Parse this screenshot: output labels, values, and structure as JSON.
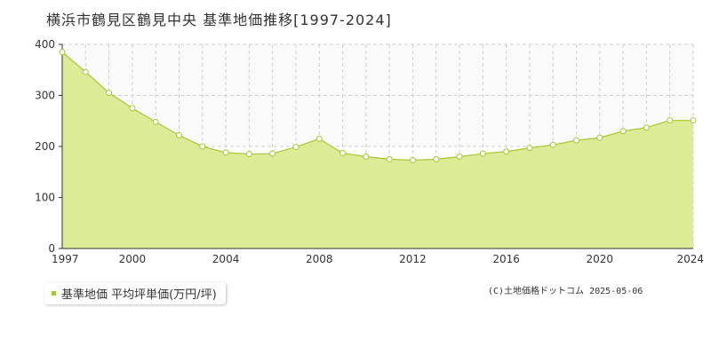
{
  "title": "横浜市鶴見区鶴見中央  基準地価推移[1997-2024]",
  "legend_label": "基準地価 平均坪単価(万円/坪)",
  "credit": "(C)土地価格ドットコム 2025-05-06",
  "colors": {
    "area_fill": "#dcec96",
    "line": "#a6c832",
    "marker_fill": "#ffffff",
    "grid": "#d0d0d0",
    "upper_band": "#fafafa",
    "axis": "#333333"
  },
  "chart_data": {
    "type": "area",
    "title": "横浜市鶴見区鶴見中央  基準地価推移[1997-2024]",
    "xlabel": "",
    "ylabel": "",
    "ylim": [
      0,
      400
    ],
    "yticks": [
      0,
      100,
      200,
      300,
      400
    ],
    "xticks": [
      1997,
      2000,
      2004,
      2008,
      2012,
      2016,
      2020,
      2024
    ],
    "x": [
      1997,
      1998,
      1999,
      2000,
      2001,
      2002,
      2003,
      2004,
      2005,
      2006,
      2007,
      2008,
      2009,
      2010,
      2011,
      2012,
      2013,
      2014,
      2015,
      2016,
      2017,
      2018,
      2019,
      2020,
      2021,
      2022,
      2023,
      2024
    ],
    "series": [
      {
        "name": "基準地価 平均坪単価(万円/坪)",
        "values": [
          385,
          346,
          305,
          275,
          248,
          222,
          200,
          188,
          185,
          186,
          199,
          215,
          187,
          180,
          175,
          173,
          175,
          180,
          186,
          190,
          197,
          203,
          212,
          217,
          230,
          237,
          251,
          251
        ]
      }
    ],
    "grid": true,
    "legend_position": "bottom-left"
  }
}
